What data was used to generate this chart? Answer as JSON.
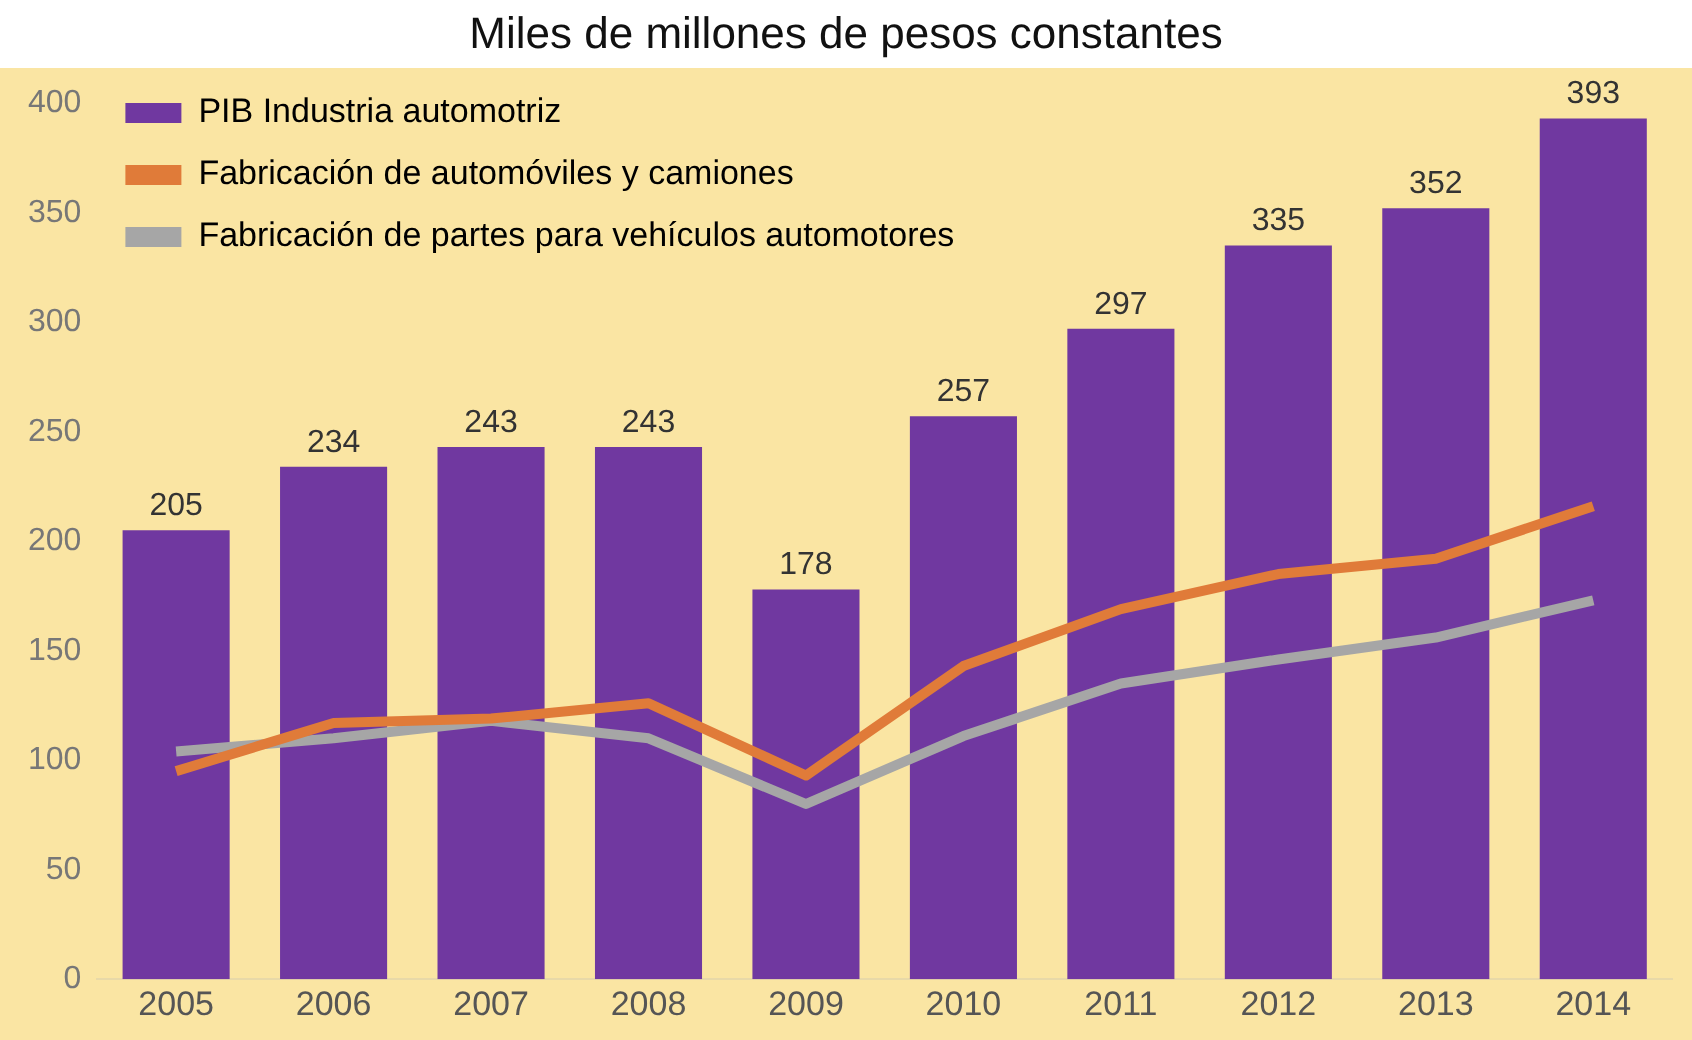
{
  "chart_data": {
    "type": "bar",
    "title": "Miles de millones de pesos constantes",
    "categories": [
      "2005",
      "2006",
      "2007",
      "2008",
      "2009",
      "2010",
      "2011",
      "2012",
      "2013",
      "2014"
    ],
    "series": [
      {
        "name": "PIB Industria automotriz",
        "color": "#7038a0",
        "values": [
          205,
          234,
          243,
          243,
          178,
          257,
          297,
          335,
          352,
          393
        ],
        "value_labels": [
          "205",
          "234",
          "243",
          "243",
          "178",
          "257",
          "297",
          "335",
          "352",
          "393"
        ]
      },
      {
        "name": "Fabricación de automóviles y camiones",
        "type": "line",
        "color": "#e07b39",
        "values": [
          95,
          117,
          119,
          126,
          93,
          143,
          169,
          185,
          192,
          216
        ]
      },
      {
        "name": "Fabricación de partes para vehículos automotores",
        "type": "line",
        "color": "#a6a6a6",
        "values": [
          104,
          110,
          118,
          110,
          80,
          111,
          135,
          146,
          156,
          173
        ]
      }
    ],
    "ylim": [
      0,
      400
    ],
    "yticks": [
      0,
      50,
      100,
      150,
      200,
      250,
      300,
      350,
      400
    ],
    "grid": false,
    "legend": "top left",
    "marker": "none"
  }
}
